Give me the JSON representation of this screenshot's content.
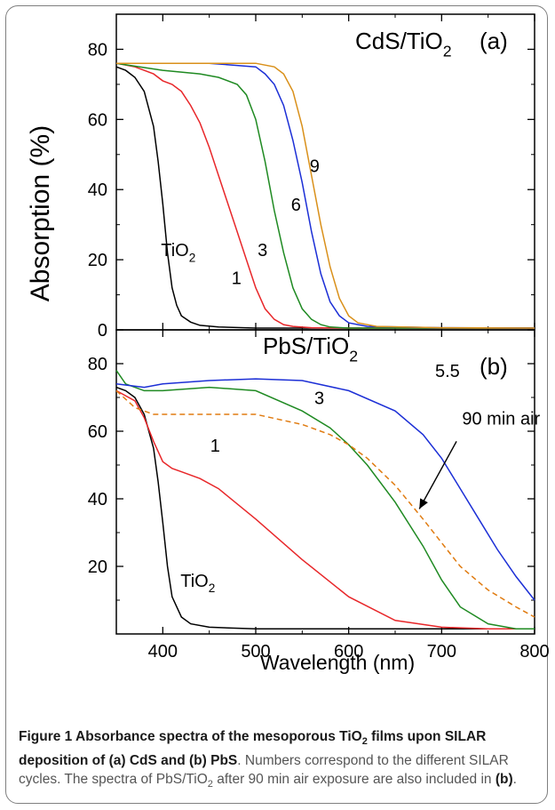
{
  "chart_data": {
    "shared": {
      "type": "line",
      "xlabel": "Wavelength (nm)",
      "ylabel": "Absorption (%)",
      "xlim": [
        350,
        800
      ],
      "xticks": [
        "400",
        "500",
        "600",
        "700",
        "800"
      ],
      "grid": false
    },
    "panels": [
      {
        "id": "a",
        "title": "CdS/TiO",
        "title_sub": "2",
        "panel_label": "(a)",
        "ylim": [
          0,
          90
        ],
        "yticks": [
          "0",
          "20",
          "40",
          "60",
          "80"
        ],
        "series": [
          {
            "name": "TiO2",
            "color": "#000000",
            "dash": false,
            "x": [
              350,
              360,
              370,
              380,
              390,
              395,
              400,
              405,
              410,
              415,
              420,
              430,
              440,
              460,
              500,
              550,
              600,
              700,
              800
            ],
            "y": [
              75,
              74,
              72,
              68,
              58,
              48,
              36,
              22,
              12,
              7,
              4,
              2.2,
              1.3,
              0.8,
              0.5,
              0.5,
              0.5,
              0.5,
              0.5
            ]
          },
          {
            "name": "1",
            "color": "#e8272a",
            "dash": false,
            "x": [
              350,
              370,
              390,
              400,
              410,
              420,
              430,
              440,
              450,
              460,
              470,
              480,
              490,
              500,
              510,
              520,
              530,
              540,
              560,
              600,
              700,
              800
            ],
            "y": [
              76,
              75,
              73,
              71,
              70,
              68,
              64,
              59,
              52,
              44,
              36,
              28,
              20,
              12,
              6,
              3,
              1.5,
              1,
              0.6,
              0.5,
              0.5,
              0.5
            ]
          },
          {
            "name": "3",
            "color": "#1f8a22",
            "dash": false,
            "x": [
              350,
              400,
              440,
              460,
              480,
              490,
              500,
              510,
              520,
              530,
              540,
              550,
              560,
              570,
              580,
              600,
              700,
              800
            ],
            "y": [
              76,
              74,
              73,
              72,
              70,
              67,
              60,
              48,
              34,
              22,
              12,
              6,
              3,
              1.5,
              0.8,
              0.5,
              0.5,
              0.5
            ]
          },
          {
            "name": "6",
            "color": "#1c2fd6",
            "dash": false,
            "x": [
              350,
              450,
              500,
              510,
              520,
              530,
              540,
              550,
              560,
              570,
              580,
              590,
              600,
              620,
              700,
              800
            ],
            "y": [
              76,
              76,
              75,
              73,
              70,
              64,
              54,
              42,
              28,
              16,
              8,
              4,
              2,
              1,
              0.6,
              0.5
            ]
          },
          {
            "name": "9",
            "color": "#d9901a",
            "dash": false,
            "x": [
              350,
              450,
              500,
              520,
              530,
              540,
              550,
              560,
              570,
              580,
              590,
              600,
              610,
              630,
              700,
              800
            ],
            "y": [
              76,
              76,
              76,
              75,
              73,
              68,
              58,
              44,
              30,
              18,
              9,
              4,
              2,
              1,
              0.6,
              0.5
            ]
          }
        ],
        "annotations": [
          {
            "text": "TiO",
            "sub": "2",
            "x": 398,
            "y": 21
          },
          {
            "text": "1",
            "x": 474,
            "y": 13
          },
          {
            "text": "3",
            "x": 502,
            "y": 21
          },
          {
            "text": "6",
            "x": 538,
            "y": 34
          },
          {
            "text": "9",
            "x": 558,
            "y": 45
          }
        ]
      },
      {
        "id": "b",
        "title": "PbS/TiO",
        "title_sub": "2",
        "panel_label": "(b)",
        "ylim": [
          0,
          90
        ],
        "yticks": [
          "20",
          "40",
          "60",
          "80"
        ],
        "series": [
          {
            "name": "TiO2",
            "color": "#000000",
            "dash": false,
            "x": [
              350,
              360,
              370,
              380,
              390,
              395,
              400,
              405,
              410,
              420,
              430,
              450,
              500,
              600,
              700,
              800
            ],
            "y": [
              73,
              72,
              70,
              65,
              55,
              45,
              33,
              20,
              11,
              5,
              3,
              2,
              1.5,
              1.5,
              1.5,
              1.5
            ]
          },
          {
            "name": "1",
            "color": "#e8272a",
            "dash": false,
            "x": [
              350,
              370,
              380,
              390,
              400,
              410,
              420,
              440,
              460,
              500,
              550,
              600,
              650,
              700,
              750,
              800
            ],
            "y": [
              72,
              69,
              64,
              57,
              51,
              49,
              48,
              46,
              43,
              34,
              22,
              11,
              4,
              2,
              1.5,
              1.5
            ]
          },
          {
            "name": "3",
            "color": "#1f8a22",
            "dash": false,
            "x": [
              350,
              360,
              380,
              400,
              450,
              500,
              550,
              580,
              600,
              620,
              650,
              680,
              700,
              720,
              750,
              780,
              800
            ],
            "y": [
              78,
              74,
              72,
              72,
              73,
              72,
              66,
              61,
              56,
              50,
              39,
              26,
              16,
              8,
              3,
              1.5,
              1.5
            ]
          },
          {
            "name": "5.5",
            "color": "#1c2fd6",
            "dash": false,
            "x": [
              350,
              380,
              400,
              450,
              500,
              550,
              600,
              650,
              680,
              700,
              720,
              740,
              760,
              780,
              800
            ],
            "y": [
              74,
              73,
              74,
              75,
              75.5,
              75,
              72,
              66,
              59,
              52,
              43,
              34,
              25,
              17,
              10
            ]
          },
          {
            "name": "90 min air",
            "color": "#e07b10",
            "dash": true,
            "x": [
              350,
              370,
              390,
              400,
              420,
              450,
              500,
              550,
              580,
              600,
              620,
              650,
              680,
              700,
              720,
              750,
              780,
              800
            ],
            "y": [
              72,
              67,
              65,
              65,
              65,
              65,
              65,
              62,
              59,
              56,
              52,
              44,
              34,
              27,
              20,
              13,
              8,
              5
            ]
          }
        ],
        "annotations": [
          {
            "text": "TiO",
            "sub": "2",
            "x": 419,
            "y": 14
          },
          {
            "text": "1",
            "x": 451,
            "y": 54
          },
          {
            "text": "3",
            "x": 563,
            "y": 68
          },
          {
            "text": "5.5",
            "x": 693,
            "y": 76
          },
          {
            "text": "90 min air",
            "x": 722,
            "y": 62
          }
        ]
      }
    ]
  },
  "caption": {
    "title_prefix": "Figure 1 Absorbance spectra of the mesoporous TiO",
    "title_sub": "2",
    "title_suffix": " films upon SILAR deposition of (a) CdS and (b) PbS",
    "body_1": ". Numbers correspond to the different SILAR cycles. The spectra of PbS/TiO",
    "body_sub": "2",
    "body_2": " after 90 min air exposure are also included in ",
    "body_ref": "(b)",
    "body_end": "."
  }
}
